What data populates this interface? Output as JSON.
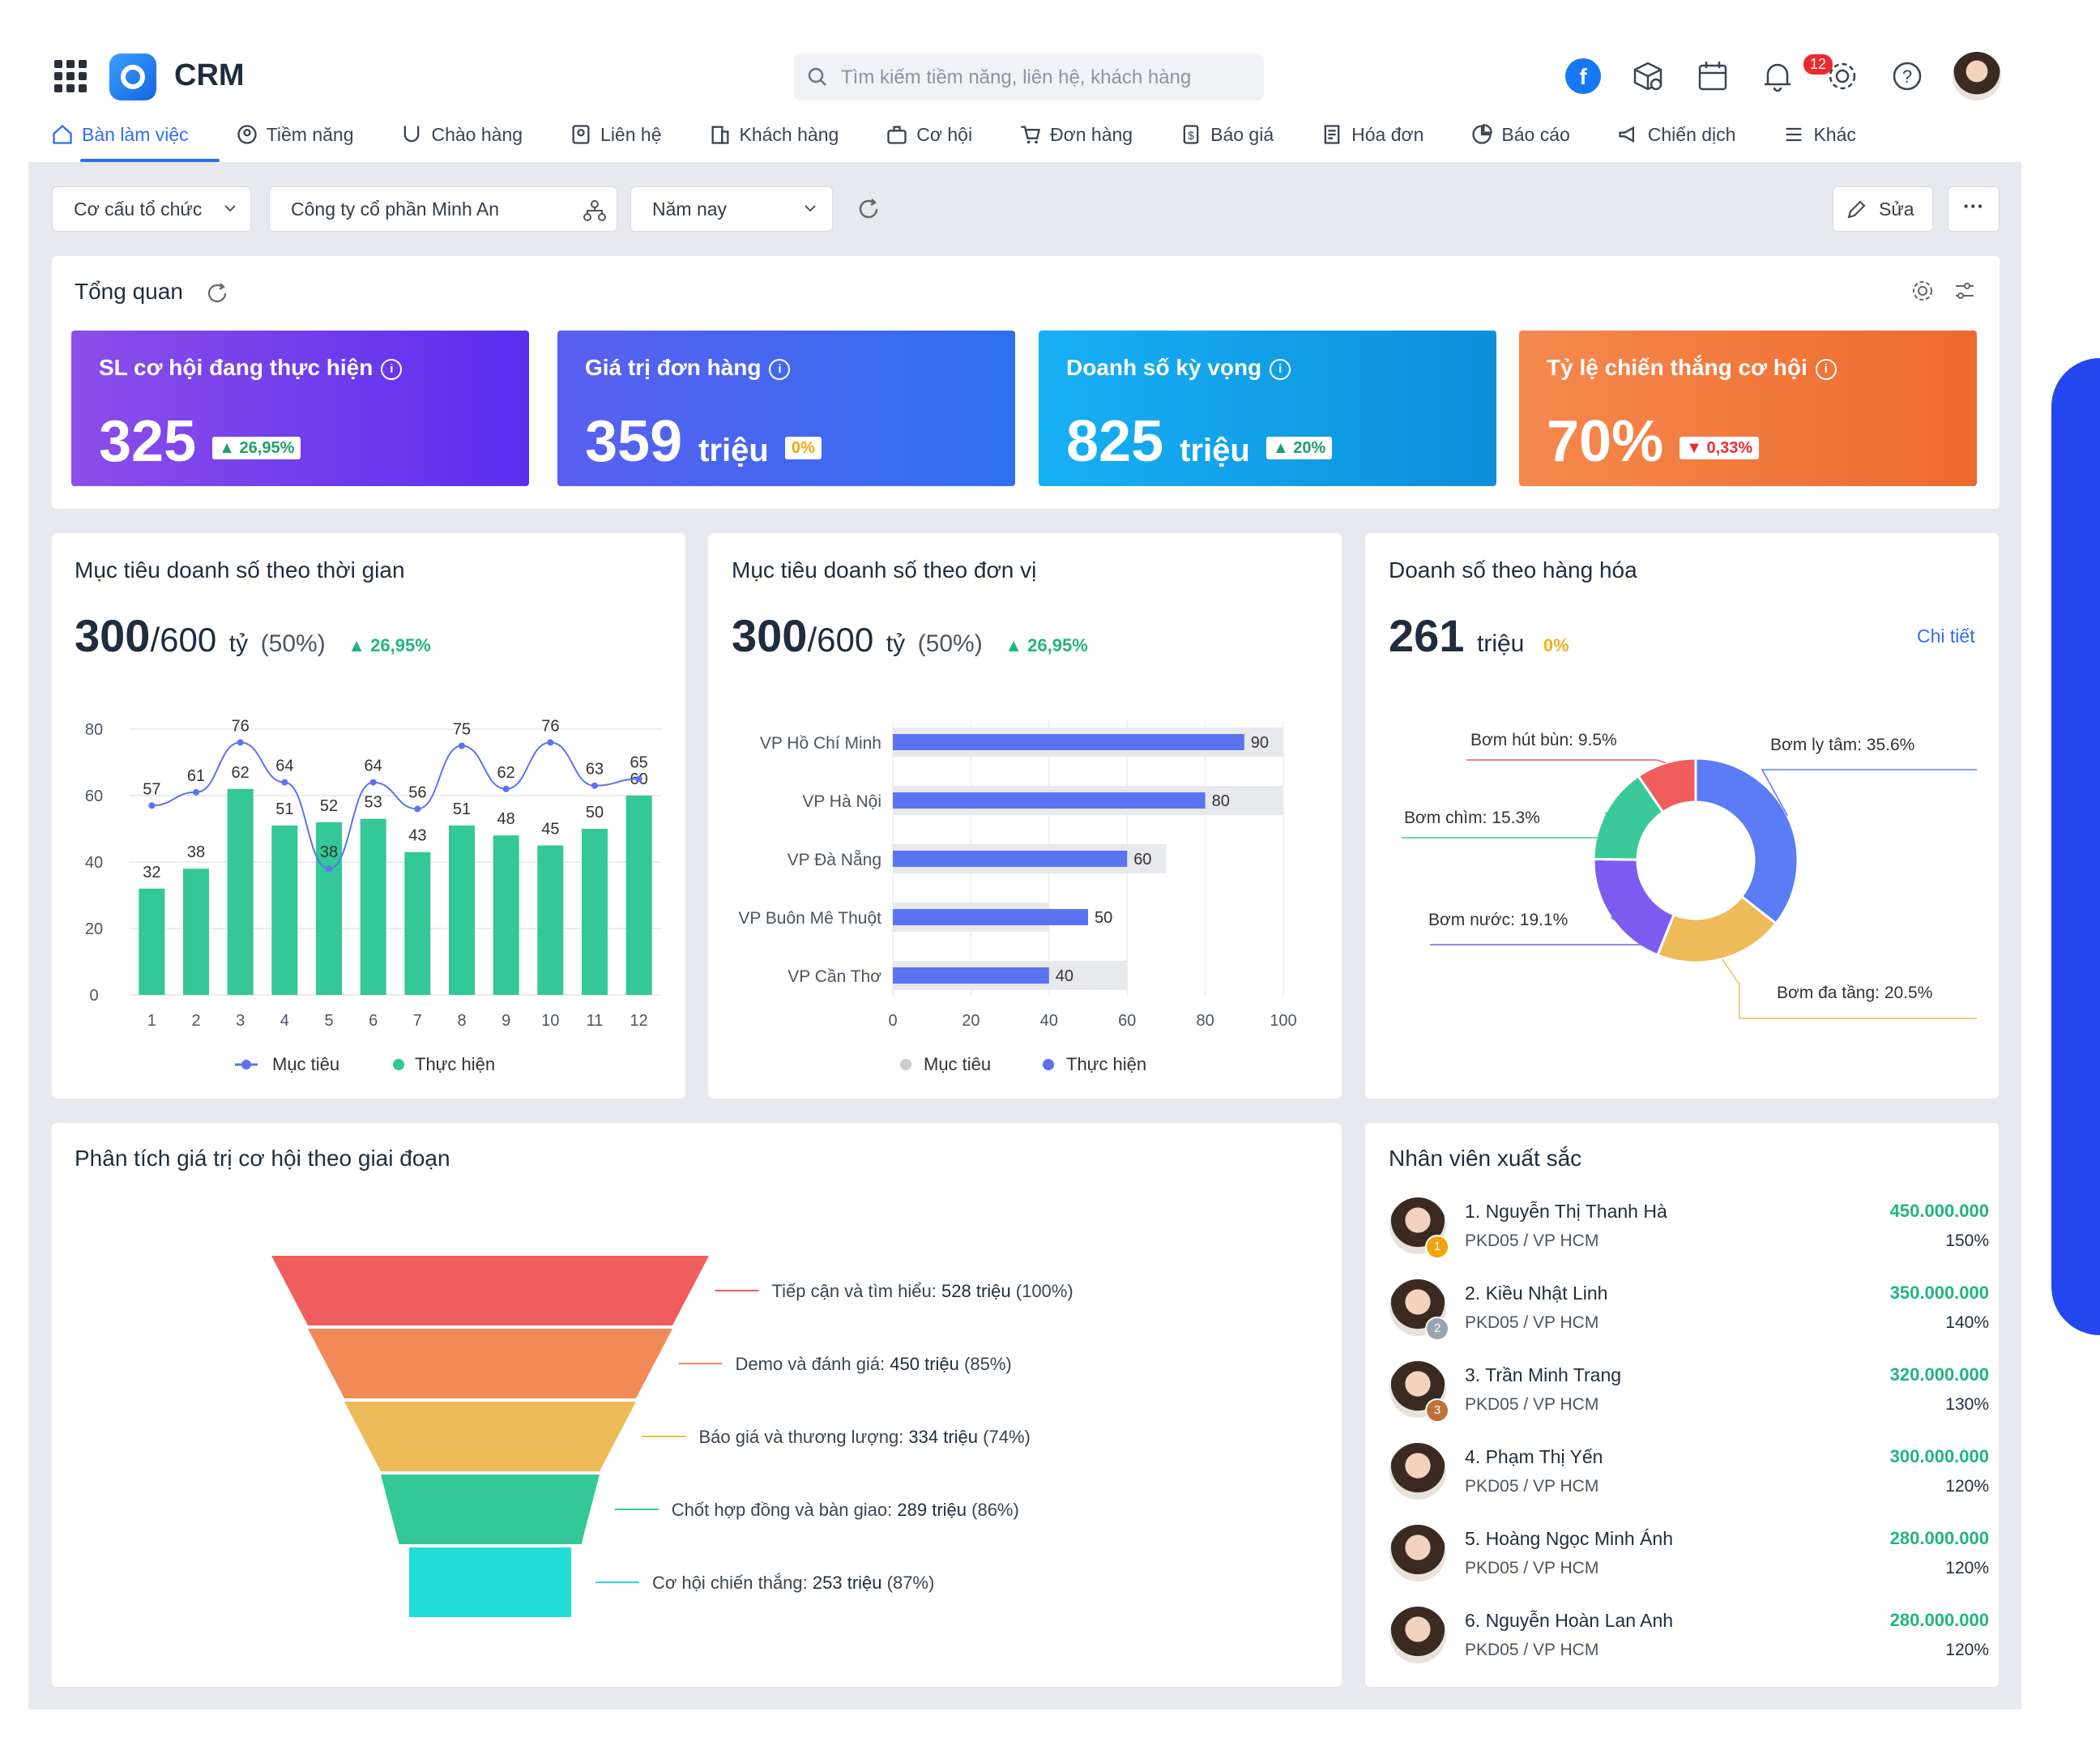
{
  "header": {
    "app_name": "CRM",
    "search_placeholder": "Tìm kiếm tiềm năng, liên hệ, khách hàng",
    "notification_count": "12"
  },
  "nav": [
    {
      "label": "Bàn làm việc",
      "icon": "home-icon",
      "active": true
    },
    {
      "label": "Tiềm năng",
      "icon": "person-target-icon"
    },
    {
      "label": "Chào hàng",
      "icon": "magnet-icon"
    },
    {
      "label": "Liên hệ",
      "icon": "contact-card-icon"
    },
    {
      "label": "Khách hàng",
      "icon": "building-icon"
    },
    {
      "label": "Cơ hội",
      "icon": "briefcase-icon"
    },
    {
      "label": "Đơn hàng",
      "icon": "cart-icon"
    },
    {
      "label": "Báo giá",
      "icon": "dollar-doc-icon"
    },
    {
      "label": "Hóa đơn",
      "icon": "receipt-icon"
    },
    {
      "label": "Báo cáo",
      "icon": "pie-icon"
    },
    {
      "label": "Chiến dịch",
      "icon": "megaphone-icon"
    },
    {
      "label": "Khác",
      "icon": "menu-icon"
    }
  ],
  "filters": {
    "org_structure": "Cơ cấu tổ chức",
    "company": "Công ty cổ phần Minh An",
    "period": "Năm nay",
    "edit_label": "Sửa"
  },
  "overview": {
    "title": "Tổng quan",
    "kpis": [
      {
        "title": "SL cơ hội đang thực hiện",
        "value": "325",
        "unit": "",
        "badge": "26,95%",
        "trend": "up",
        "color_from": "#8b4ee8",
        "color_to": "#5a2df0"
      },
      {
        "title": "Giá trị đơn hàng",
        "value": "359",
        "unit": "triệu",
        "badge": "0%",
        "trend": "flat",
        "color_from": "#5b5ff0",
        "color_to": "#2f6ff0"
      },
      {
        "title": "Doanh số kỳ vọng",
        "value": "825",
        "unit": "triệu",
        "badge": "20%",
        "trend": "up",
        "color_from": "#17b0f5",
        "color_to": "#0d8fdc"
      },
      {
        "title": "Tỷ lệ chiến thắng cơ hội",
        "value": "70%",
        "unit": "",
        "badge": "0,33%",
        "trend": "down",
        "color_from": "#f5894e",
        "color_to": "#ee6a2d"
      }
    ]
  },
  "time_chart": {
    "title": "Mục tiêu doanh số theo thời gian",
    "value_main": "300",
    "value_total": "/600",
    "unit": "tỷ",
    "pct": "(50%)",
    "delta": "26,95%",
    "legend_target": "Mục tiêu",
    "legend_actual": "Thực hiện"
  },
  "unit_chart": {
    "title": "Mục tiêu doanh số theo đơn vị",
    "value_main": "300",
    "value_total": "/600",
    "unit": "tỷ",
    "pct": "(50%)",
    "delta": "26,95%",
    "legend_target": "Mục tiêu",
    "legend_actual": "Thực hiện"
  },
  "product_chart": {
    "title": "Doanh số theo hàng hóa",
    "value": "261",
    "unit": "triệu",
    "delta": "0%",
    "detail_link": "Chi tiết"
  },
  "funnel_card": {
    "title": "Phân tích giá trị cơ hội theo giai đoạn"
  },
  "top_staff": {
    "title": "Nhân viên xuất sắc",
    "items": [
      {
        "name": "1. Nguyễn Thị Thanh Hà",
        "dept": "PKD05 / VP HCM",
        "amount": "450.000.000",
        "pct": "150%",
        "medal": "1"
      },
      {
        "name": "2. Kiều Nhật Linh",
        "dept": "PKD05 / VP HCM",
        "amount": "350.000.000",
        "pct": "140%",
        "medal": "2"
      },
      {
        "name": "3. Trần Minh Trang",
        "dept": "PKD05 / VP HCM",
        "amount": "320.000.000",
        "pct": "130%",
        "medal": "3"
      },
      {
        "name": "4. Phạm Thị Yến",
        "dept": "PKD05 / VP HCM",
        "amount": "300.000.000",
        "pct": "120%",
        "medal": ""
      },
      {
        "name": "5. Hoàng Ngọc Minh Ánh",
        "dept": "PKD05 / VP HCM",
        "amount": "280.000.000",
        "pct": "120%",
        "medal": ""
      },
      {
        "name": "6. Nguyễn Hoàn Lan Anh",
        "dept": "PKD05 / VP HCM",
        "amount": "280.000.000",
        "pct": "120%",
        "medal": ""
      }
    ]
  },
  "chart_data": [
    {
      "type": "bar",
      "categories": [
        "1",
        "2",
        "3",
        "4",
        "5",
        "6",
        "7",
        "8",
        "9",
        "10",
        "11",
        "12"
      ],
      "series": [
        {
          "name": "Thực hiện",
          "kind": "bar",
          "values": [
            32,
            38,
            62,
            51,
            52,
            53,
            43,
            51,
            48,
            45,
            50,
            60
          ],
          "color": "#34c797"
        },
        {
          "name": "Mục tiêu",
          "kind": "line",
          "values": [
            57,
            61,
            76,
            64,
            38,
            64,
            56,
            75,
            62,
            76,
            63,
            65
          ],
          "color": "#5b73f0"
        }
      ],
      "yticks": [
        0,
        20,
        40,
        60,
        80
      ],
      "ylim": [
        0,
        80
      ]
    },
    {
      "type": "bar",
      "orientation": "horizontal",
      "categories": [
        "VP Hồ Chí Minh",
        "VP Hà Nội",
        "VP Đà Nẵng",
        "VP  Buôn Mê Thuột",
        "VP Cần Thơ"
      ],
      "series": [
        {
          "name": "Mục tiêu",
          "values": [
            100,
            100,
            70,
            40,
            60
          ],
          "color": "#e8e9ed"
        },
        {
          "name": "Thực hiện",
          "values": [
            90,
            80,
            60,
            50,
            40
          ],
          "color": "#5b73f0"
        }
      ],
      "xticks": [
        0,
        20,
        40,
        60,
        80,
        100
      ],
      "xlim": [
        0,
        100
      ]
    },
    {
      "type": "pie",
      "donut": true,
      "slices": [
        {
          "label": "Bơm ly tâm: 35.6%",
          "value": 35.6,
          "color": "#5b7cf5"
        },
        {
          "label": "Bơm đa tầng: 20.5%",
          "value": 20.5,
          "color": "#edbb5a"
        },
        {
          "label": "Bơm nước: 19.1%",
          "value": 19.1,
          "color": "#7c5cf0"
        },
        {
          "label": "Bơm chìm: 15.3%",
          "value": 15.3,
          "color": "#3bc99b"
        },
        {
          "label": "Bơm hút bùn: 9.5%",
          "value": 9.5,
          "color": "#ef5d5d"
        }
      ]
    },
    {
      "type": "funnel",
      "stages": [
        {
          "name": "Tiếp cận và tìm hiểu:",
          "value": "528 triệu",
          "pct": "(100%)",
          "color": "#ef5d5d"
        },
        {
          "name": "Demo và đánh giá:",
          "value": "450 triệu",
          "pct": "(85%)",
          "color": "#f28a57"
        },
        {
          "name": "Báo giá và thương lượng:",
          "value": "334 triệu",
          "pct": "(74%)",
          "color": "#edbb5a"
        },
        {
          "name": "Chốt hợp đồng và bàn giao:",
          "value": "289 triệu",
          "pct": "(86%)",
          "color": "#34c797"
        },
        {
          "name": "Cơ hội chiến thắng:",
          "value": "253 triệu",
          "pct": "(87%)",
          "color": "#22dcd6"
        }
      ]
    }
  ]
}
